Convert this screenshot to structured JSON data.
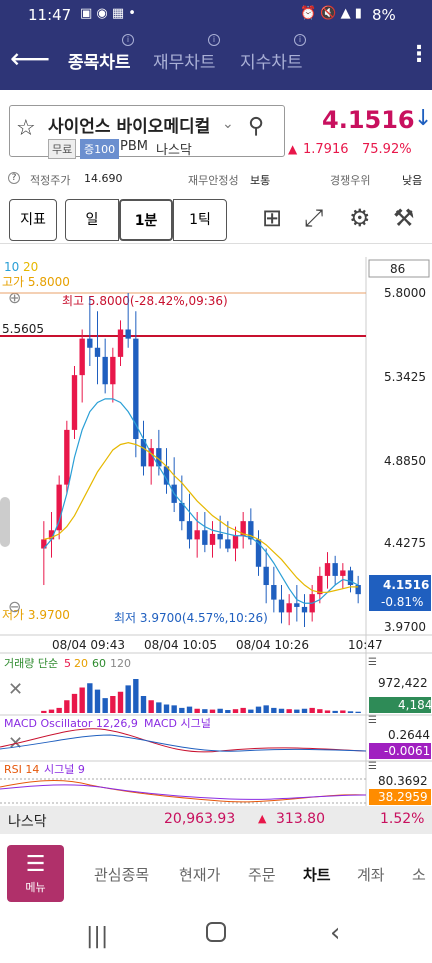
{
  "status": {
    "time": "11:47",
    "battery": "8%"
  },
  "nav": {
    "tabs": [
      "종목차트",
      "재무차트",
      "지수차트"
    ]
  },
  "stock": {
    "name": "사이언스 바이오메디컬",
    "tags": [
      "무료",
      "증100",
      "PBM",
      "나스닥"
    ],
    "price": "4.1516",
    "change": "1.7916",
    "change_pct": "75.92%"
  },
  "info": {
    "fair_price_label": "적정주가",
    "fair_price": "14.690",
    "stability_label": "재무안정성",
    "stability": "보통",
    "competition_label": "경쟁우위",
    "competition": "낮음"
  },
  "toolbar": {
    "indicator": "지표",
    "day": "일",
    "minute": "1분",
    "tick": "1틱"
  },
  "chart_data": {
    "type": "candlestick",
    "ma_legend": [
      "10",
      "20"
    ],
    "count_box": "86",
    "high_label": "고가 5.8000",
    "low_label": "저가 3.9700",
    "max_annotation": "최고 5.8000(-28.42%,09:36)",
    "min_annotation": "최저 3.9700(4.57%,10:26)",
    "ref_line_label": "5.5605",
    "y_ticks": [
      "5.8000",
      "5.3425",
      "4.8850",
      "4.4275",
      "3.9700"
    ],
    "ylim": [
      3.97,
      5.8
    ],
    "x_ticks": [
      "08/04 09:43",
      "08/04 10:05",
      "08/04 10:26",
      "10:47"
    ],
    "last_price": "4.1516",
    "last_change": "-0.81%",
    "candles_ohlc": [
      [
        4.4,
        4.55,
        4.2,
        4.45
      ],
      [
        4.45,
        4.6,
        4.35,
        4.5
      ],
      [
        4.5,
        4.8,
        4.45,
        4.75
      ],
      [
        4.75,
        5.1,
        4.7,
        5.05
      ],
      [
        5.05,
        5.4,
        5.0,
        5.35
      ],
      [
        5.35,
        5.6,
        5.2,
        5.55
      ],
      [
        5.55,
        5.78,
        5.4,
        5.5
      ],
      [
        5.5,
        5.7,
        5.3,
        5.45
      ],
      [
        5.45,
        5.55,
        5.25,
        5.3
      ],
      [
        5.3,
        5.5,
        5.2,
        5.45
      ],
      [
        5.45,
        5.65,
        5.4,
        5.6
      ],
      [
        5.6,
        5.8,
        5.5,
        5.55
      ],
      [
        5.55,
        5.7,
        4.9,
        5.0
      ],
      [
        5.0,
        5.1,
        4.8,
        4.85
      ],
      [
        4.85,
        5.0,
        4.75,
        4.95
      ],
      [
        4.95,
        5.05,
        4.8,
        4.85
      ],
      [
        4.85,
        4.95,
        4.7,
        4.75
      ],
      [
        4.75,
        4.9,
        4.6,
        4.65
      ],
      [
        4.65,
        4.8,
        4.5,
        4.55
      ],
      [
        4.55,
        4.7,
        4.4,
        4.45
      ],
      [
        4.45,
        4.6,
        4.35,
        4.5
      ],
      [
        4.5,
        4.6,
        4.38,
        4.42
      ],
      [
        4.42,
        4.55,
        4.35,
        4.48
      ],
      [
        4.48,
        4.58,
        4.4,
        4.45
      ],
      [
        4.45,
        4.55,
        4.38,
        4.4
      ],
      [
        4.4,
        4.52,
        4.33,
        4.47
      ],
      [
        4.47,
        4.6,
        4.4,
        4.55
      ],
      [
        4.55,
        4.62,
        4.42,
        4.45
      ],
      [
        4.45,
        4.5,
        4.25,
        4.3
      ],
      [
        4.3,
        4.4,
        4.1,
        4.2
      ],
      [
        4.2,
        4.3,
        4.05,
        4.12
      ],
      [
        4.12,
        4.2,
        3.99,
        4.05
      ],
      [
        4.05,
        4.15,
        3.98,
        4.1
      ],
      [
        4.1,
        4.2,
        4.0,
        4.08
      ],
      [
        4.08,
        4.15,
        3.97,
        4.05
      ],
      [
        4.05,
        4.2,
        4.0,
        4.15
      ],
      [
        4.15,
        4.3,
        4.1,
        4.25
      ],
      [
        4.25,
        4.38,
        4.18,
        4.32
      ],
      [
        4.32,
        4.36,
        4.2,
        4.25
      ],
      [
        4.25,
        4.32,
        4.18,
        4.28
      ],
      [
        4.28,
        4.3,
        4.16,
        4.2
      ],
      [
        4.2,
        4.25,
        4.1,
        4.15
      ]
    ],
    "ma10": [
      4.4,
      4.45,
      4.55,
      4.7,
      4.9,
      5.05,
      5.15,
      5.2,
      5.22,
      5.22,
      5.2,
      5.15,
      5.08,
      5.0,
      4.92,
      4.85,
      4.78,
      4.7,
      4.65,
      4.6,
      4.55,
      4.52,
      4.5,
      4.49,
      4.48,
      4.47,
      4.47,
      4.46,
      4.43,
      4.38,
      4.32,
      4.25,
      4.18,
      4.12,
      4.1,
      4.1,
      4.12,
      4.16,
      4.2,
      4.23,
      4.22,
      4.2
    ],
    "ma20": [
      4.45,
      4.46,
      4.48,
      4.52,
      4.58,
      4.66,
      4.74,
      4.82,
      4.88,
      4.94,
      4.97,
      4.98,
      4.97,
      4.95,
      4.92,
      4.89,
      4.85,
      4.8,
      4.76,
      4.71,
      4.66,
      4.62,
      4.58,
      4.55,
      4.52,
      4.5,
      4.48,
      4.47,
      4.45,
      4.42,
      4.38,
      4.34,
      4.29,
      4.24,
      4.2,
      4.17,
      4.16,
      4.16,
      4.17,
      4.18,
      4.19,
      4.19
    ],
    "volume_legend": [
      "거래량 단순",
      "5",
      "20",
      "60",
      "120"
    ],
    "volume_max": "972,422",
    "volume_last": "4,184",
    "volume": [
      5,
      8,
      12,
      30,
      45,
      60,
      70,
      55,
      35,
      40,
      50,
      65,
      80,
      40,
      30,
      25,
      20,
      18,
      12,
      15,
      10,
      9,
      8,
      10,
      7,
      9,
      12,
      8,
      15,
      18,
      12,
      10,
      9,
      8,
      10,
      12,
      9,
      6,
      5,
      6,
      4,
      3
    ],
    "macd_legend": "MACD Oscillator 12,26,9",
    "macd_signal_label": "MACD 시그널",
    "macd_max": "0.2644",
    "macd_last": "-0.0061",
    "rsi_legend": "RSI 14",
    "rsi_signal_label": "시그널 9",
    "rsi_max": "80.3692",
    "rsi_last": "38.2959"
  },
  "market": {
    "name": "나스닥",
    "value": "20,963.93",
    "change": "313.80",
    "pct": "1.52%"
  },
  "bottom": {
    "menu": "메뉴",
    "tabs": [
      "관심종목",
      "현재가",
      "주문",
      "차트",
      "계좌",
      "소"
    ]
  },
  "colors": {
    "up": "#e8174a",
    "down": "#1f5fbf",
    "nav_bg": "#2e3577",
    "ma10": "#2a9fd6",
    "ma20": "#e6b800",
    "accent": "#b0306a"
  }
}
